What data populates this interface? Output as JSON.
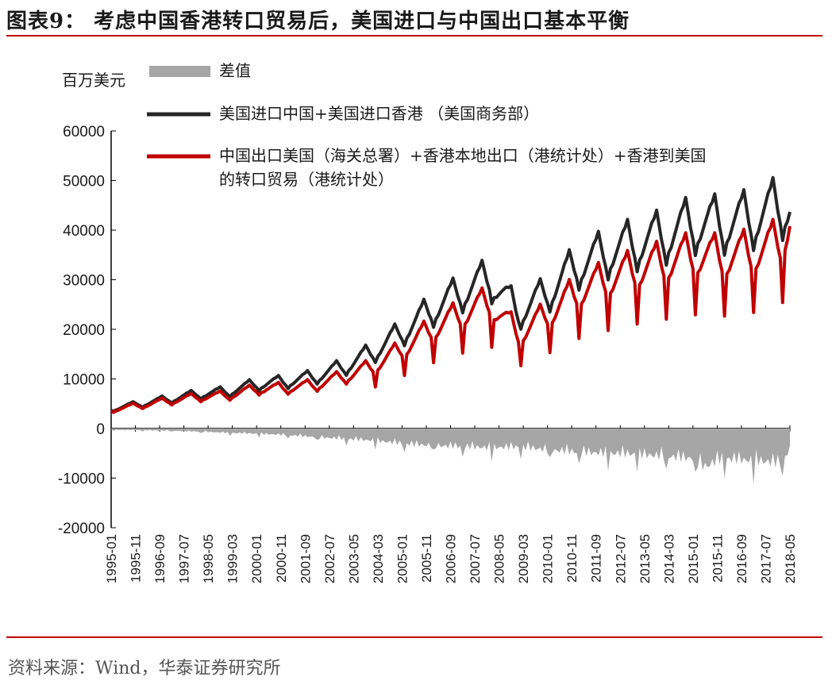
{
  "title": "图表9：  考虑中国香港转口贸易后，美国进口与中国出口基本平衡",
  "source": "资料来源：Wind，华泰证券研究所",
  "chart_data": {
    "type": "line",
    "unit_label": "百万美元",
    "ylim": [
      -20000,
      60000
    ],
    "y_ticks": [
      "60000",
      "50000",
      "40000",
      "30000",
      "20000",
      "10000",
      "0",
      "-10000",
      "-20000"
    ],
    "x_range": [
      "1995-01",
      "2018-05"
    ],
    "x_ticks": [
      "1995-01",
      "1995-11",
      "1996-09",
      "1997-07",
      "1998-05",
      "1999-03",
      "2000-01",
      "2000-11",
      "2001-09",
      "2002-07",
      "2003-05",
      "2004-03",
      "2005-01",
      "2005-11",
      "2006-09",
      "2007-07",
      "2008-05",
      "2009-03",
      "2010-01",
      "2010-11",
      "2011-09",
      "2012-07",
      "2013-05",
      "2014-03",
      "2015-01",
      "2015-11",
      "2016-09",
      "2017-07",
      "2018-05"
    ],
    "legend_placement": "top-left",
    "series": [
      {
        "name": "差值",
        "kind": "area",
        "color": "#a6a6a6",
        "x": [
          "1995-01",
          "1996-01",
          "1997-01",
          "1998-01",
          "1999-01",
          "2000-01",
          "2001-01",
          "2002-01",
          "2003-01",
          "2004-01",
          "2005-01",
          "2006-01",
          "2007-01",
          "2008-01",
          "2009-01",
          "2010-01",
          "2011-01",
          "2012-01",
          "2013-01",
          "2014-01",
          "2015-01",
          "2015-06",
          "2016-01",
          "2017-01",
          "2018-01",
          "2018-05"
        ],
        "values": [
          -300,
          -400,
          -500,
          -700,
          -1000,
          -1200,
          -1500,
          -2000,
          -2400,
          -2800,
          -3500,
          -4000,
          -4200,
          -4500,
          -4300,
          -5000,
          -5500,
          -5800,
          -6000,
          -6500,
          -7000,
          -9000,
          -7000,
          -7500,
          -8000,
          -5000
        ]
      },
      {
        "name": "美国进口中国+美国进口香港    （美国商务部）",
        "kind": "line",
        "color": "#262626",
        "x": [
          "1995-01",
          "1996-01",
          "1997-01",
          "1998-01",
          "1999-01",
          "2000-01",
          "2001-01",
          "2002-01",
          "2003-01",
          "2004-01",
          "2005-01",
          "2006-01",
          "2007-01",
          "2008-01",
          "2009-01",
          "2010-01",
          "2011-01",
          "2012-01",
          "2013-01",
          "2014-01",
          "2015-01",
          "2016-01",
          "2017-01",
          "2018-01",
          "2018-05"
        ],
        "values": [
          4000,
          5000,
          6000,
          7000,
          7500,
          9000,
          9500,
          10500,
          12500,
          15500,
          19500,
          24000,
          27500,
          30500,
          23500,
          27500,
          33000,
          35500,
          37500,
          39000,
          41500,
          41500,
          42500,
          45000,
          45500
        ]
      },
      {
        "name": "中国出口美国（海关总署）+香港本地出口（港统计处）+香港到美国的转口贸易（港统计处）",
        "kind": "line",
        "color": "#c00000",
        "x": [
          "1995-01",
          "1996-01",
          "1997-01",
          "1998-01",
          "1999-01",
          "2000-01",
          "2001-01",
          "2002-01",
          "2003-01",
          "2004-01",
          "2005-01",
          "2006-01",
          "2007-01",
          "2008-01",
          "2009-01",
          "2010-01",
          "2011-01",
          "2012-01",
          "2013-01",
          "2014-01",
          "2015-01",
          "2016-01",
          "2017-01",
          "2018-01",
          "2018-05"
        ],
        "values": [
          3800,
          4700,
          5600,
          6400,
          6700,
          8000,
          8200,
          8800,
          10500,
          12500,
          16000,
          20000,
          23000,
          25500,
          19000,
          23000,
          27500,
          30000,
          32000,
          33500,
          35000,
          34500,
          35500,
          37500,
          42500
        ]
      }
    ]
  }
}
